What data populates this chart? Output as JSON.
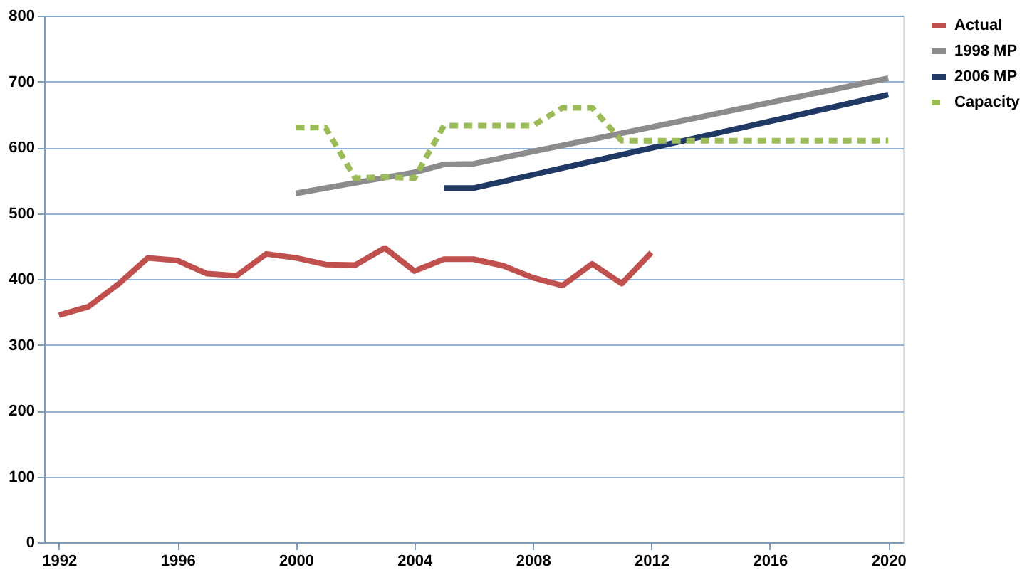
{
  "chart_data": {
    "type": "line",
    "xlim": [
      1991.5,
      2020.5
    ],
    "xticks": [
      1992,
      1996,
      2000,
      2004,
      2008,
      2012,
      2016,
      2020
    ],
    "ylim": [
      0,
      800
    ],
    "yticks": [
      0,
      100,
      200,
      300,
      400,
      500,
      600,
      700,
      800
    ],
    "grid": "y",
    "legend": "right",
    "series": [
      {
        "name": "Actual",
        "color": "#c0504d",
        "line_style": "solid",
        "x": [
          1992,
          1993,
          1994,
          1995,
          1996,
          1997,
          1998,
          1999,
          2000,
          2001,
          2002,
          2003,
          2004,
          2005,
          2006,
          2007,
          2008,
          2009,
          2010,
          2011,
          2012
        ],
        "values": [
          345,
          358,
          392,
          432,
          428,
          408,
          405,
          438,
          432,
          422,
          421,
          447,
          412,
          430,
          430,
          420,
          402,
          390,
          423,
          393,
          440
        ]
      },
      {
        "name": "1998 MP",
        "color": "#8c8c8c",
        "line_style": "solid",
        "x": [
          2000,
          2004,
          2005,
          2006,
          2020
        ],
        "values": [
          530,
          562,
          574,
          575,
          705
        ]
      },
      {
        "name": "2006 MP",
        "color": "#1f3864",
        "line_style": "solid",
        "x": [
          2005,
          2006,
          2020
        ],
        "values": [
          538,
          538,
          680
        ]
      },
      {
        "name": "Capacity",
        "color": "#9bbb59",
        "line_style": "dashed",
        "x": [
          2000,
          2001,
          2002,
          2003,
          2004,
          2005,
          2008,
          2009,
          2010,
          2011,
          2020
        ],
        "values": [
          630,
          630,
          553,
          555,
          553,
          633,
          633,
          660,
          660,
          610,
          610
        ]
      }
    ]
  }
}
